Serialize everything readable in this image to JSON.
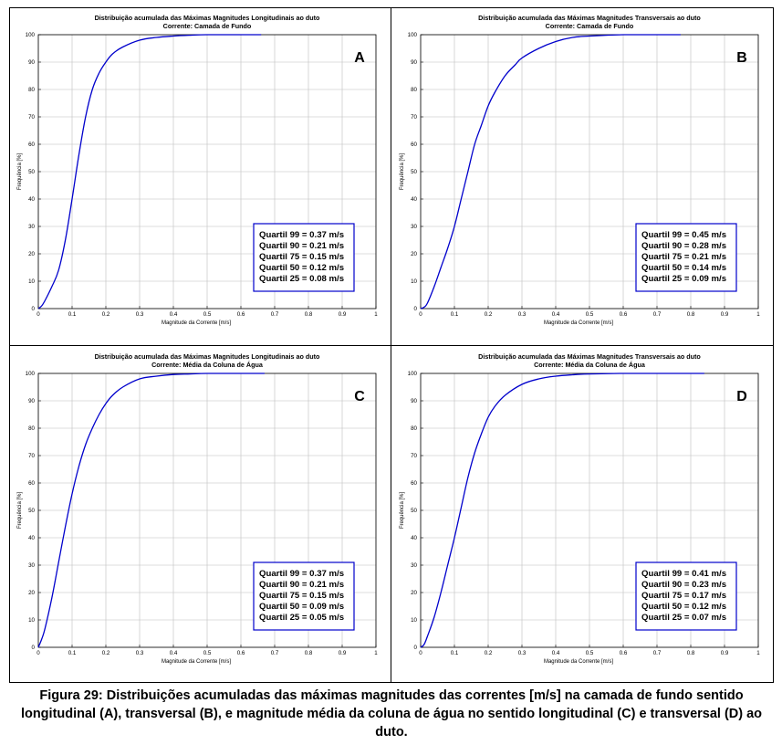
{
  "caption": "Figura 29: Distribuições acumuladas das máximas magnitudes das correntes [m/s] na camada de fundo sentido longitudinal (A), transversal (B), e magnitude média da coluna de água no sentido longitudinal (C) e transversal (D) ao duto.",
  "colors": {
    "curve": "#0000cc",
    "grid": "#bdbdbd",
    "box_border": "#0000cc"
  },
  "chart_data": [
    {
      "type": "line",
      "id": "A",
      "panel_letter": "A",
      "title": "Distribuição acumulada das Máximas Magnitudes Longitudinais ao duto",
      "subtitle": "Corrente: Camada de Fundo",
      "xlabel": "Magnitude da Corrente [m/s]",
      "ylabel": "Frequência [%]",
      "xlim": [
        0,
        1
      ],
      "ylim": [
        0,
        100
      ],
      "xticks": [
        0,
        0.1,
        0.2,
        0.3,
        0.4,
        0.5,
        0.6,
        0.7,
        0.8,
        0.9,
        1
      ],
      "yticks": [
        0,
        10,
        20,
        30,
        40,
        50,
        60,
        70,
        80,
        90,
        100
      ],
      "grid": true,
      "x": [
        0,
        0.01,
        0.02,
        0.04,
        0.06,
        0.08,
        0.1,
        0.12,
        0.14,
        0.16,
        0.18,
        0.2,
        0.22,
        0.25,
        0.3,
        0.35,
        0.4,
        0.45,
        0.5,
        0.6,
        0.66
      ],
      "y": [
        0,
        1,
        3,
        8,
        14,
        25,
        40,
        56,
        70,
        80,
        86,
        90,
        93,
        95.5,
        98,
        99,
        99.5,
        99.8,
        100,
        100,
        100
      ],
      "quartiles": [
        "Quartil 99 = 0.37 m/s",
        "Quartil 90 = 0.21 m/s",
        "Quartil 75 = 0.15 m/s",
        "Quartil 50 = 0.12 m/s",
        "Quartil 25 = 0.08 m/s"
      ]
    },
    {
      "type": "line",
      "id": "B",
      "panel_letter": "B",
      "title": "Distribuição acumulada das Máximas Magnitudes Transversais ao duto",
      "subtitle": "Corrente: Camada de Fundo",
      "xlabel": "Magnitude da Corrente [m/s]",
      "ylabel": "Frequência [%]",
      "xlim": [
        0,
        1
      ],
      "ylim": [
        0,
        100
      ],
      "xticks": [
        0,
        0.1,
        0.2,
        0.3,
        0.4,
        0.5,
        0.6,
        0.7,
        0.8,
        0.9,
        1
      ],
      "yticks": [
        0,
        10,
        20,
        30,
        40,
        50,
        60,
        70,
        80,
        90,
        100
      ],
      "grid": true,
      "x": [
        0,
        0.01,
        0.02,
        0.04,
        0.06,
        0.08,
        0.1,
        0.12,
        0.14,
        0.16,
        0.18,
        0.2,
        0.22,
        0.25,
        0.28,
        0.3,
        0.35,
        0.4,
        0.45,
        0.5,
        0.6,
        0.7,
        0.77
      ],
      "y": [
        0,
        0.5,
        2,
        8,
        15,
        22,
        30,
        40,
        50,
        60,
        67,
        74,
        79,
        85,
        89,
        91.5,
        95,
        97.5,
        99,
        99.5,
        100,
        100,
        100
      ],
      "quartiles": [
        "Quartil 99 = 0.45 m/s",
        "Quartil 90 = 0.28 m/s",
        "Quartil 75 = 0.21 m/s",
        "Quartil 50 = 0.14 m/s",
        "Quartil 25 = 0.09 m/s"
      ]
    },
    {
      "type": "line",
      "id": "C",
      "panel_letter": "C",
      "title": "Distribuição acumulada das Máximas Magnitudes Longitudinais ao duto",
      "subtitle": "Corrente: Média da Coluna de Água",
      "xlabel": "Magnitude da Corrente [m/s]",
      "ylabel": "Frequência [%]",
      "xlim": [
        0,
        1
      ],
      "ylim": [
        0,
        100
      ],
      "xticks": [
        0,
        0.1,
        0.2,
        0.3,
        0.4,
        0.5,
        0.6,
        0.7,
        0.8,
        0.9,
        1
      ],
      "yticks": [
        0,
        10,
        20,
        30,
        40,
        50,
        60,
        70,
        80,
        90,
        100
      ],
      "grid": true,
      "x": [
        0,
        0.01,
        0.02,
        0.04,
        0.06,
        0.08,
        0.1,
        0.12,
        0.14,
        0.16,
        0.18,
        0.2,
        0.22,
        0.25,
        0.3,
        0.35,
        0.4,
        0.45,
        0.5,
        0.6,
        0.67
      ],
      "y": [
        0,
        3,
        7,
        18,
        31,
        44,
        56,
        66,
        74,
        80,
        85,
        89,
        92,
        95,
        98,
        99,
        99.6,
        99.8,
        100,
        100,
        100
      ],
      "quartiles": [
        "Quartil 99 = 0.37 m/s",
        "Quartil 90 = 0.21 m/s",
        "Quartil 75 = 0.15 m/s",
        "Quartil 50 = 0.09 m/s",
        "Quartil 25 = 0.05 m/s"
      ]
    },
    {
      "type": "line",
      "id": "D",
      "panel_letter": "D",
      "title": "Distribuição acumulada das Máximas Magnitudes Transversais ao duto",
      "subtitle": "Corrente: Média da Coluna de Água",
      "xlabel": "Magnitude da Corrente [m/s]",
      "ylabel": "Frequência [%]",
      "xlim": [
        0,
        1
      ],
      "ylim": [
        0,
        100
      ],
      "xticks": [
        0,
        0.1,
        0.2,
        0.3,
        0.4,
        0.5,
        0.6,
        0.7,
        0.8,
        0.9,
        1
      ],
      "yticks": [
        0,
        10,
        20,
        30,
        40,
        50,
        60,
        70,
        80,
        90,
        100
      ],
      "grid": true,
      "x": [
        0,
        0.01,
        0.02,
        0.04,
        0.06,
        0.08,
        0.1,
        0.12,
        0.14,
        0.16,
        0.18,
        0.2,
        0.22,
        0.25,
        0.3,
        0.35,
        0.4,
        0.45,
        0.5,
        0.6,
        0.7,
        0.84
      ],
      "y": [
        0,
        1,
        4,
        11,
        20,
        30,
        40,
        51,
        62,
        71,
        78,
        84,
        88,
        92,
        96,
        98,
        99,
        99.5,
        99.8,
        100,
        100,
        100
      ],
      "quartiles": [
        "Quartil 99 = 0.41 m/s",
        "Quartil 90 = 0.23 m/s",
        "Quartil 75 = 0.17 m/s",
        "Quartil 50 = 0.12 m/s",
        "Quartil 25 = 0.07 m/s"
      ]
    }
  ]
}
